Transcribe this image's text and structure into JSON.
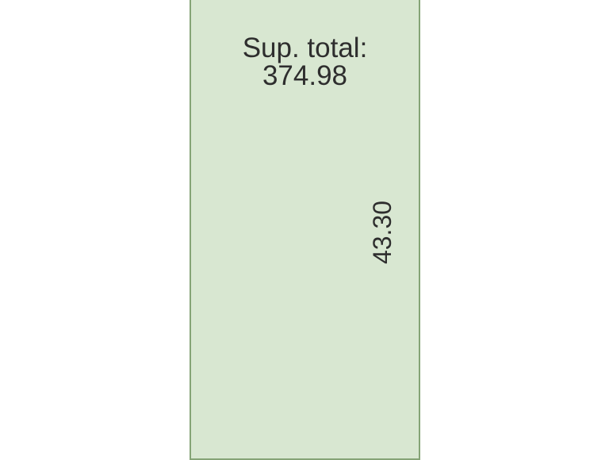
{
  "parcel": {
    "surface_label": "Sup. total:",
    "surface_value": "374.98",
    "side_dimension": "43.30",
    "colors": {
      "fill": "#d8e7d1",
      "border": "#85a476",
      "text": "#2e2e2e"
    }
  }
}
